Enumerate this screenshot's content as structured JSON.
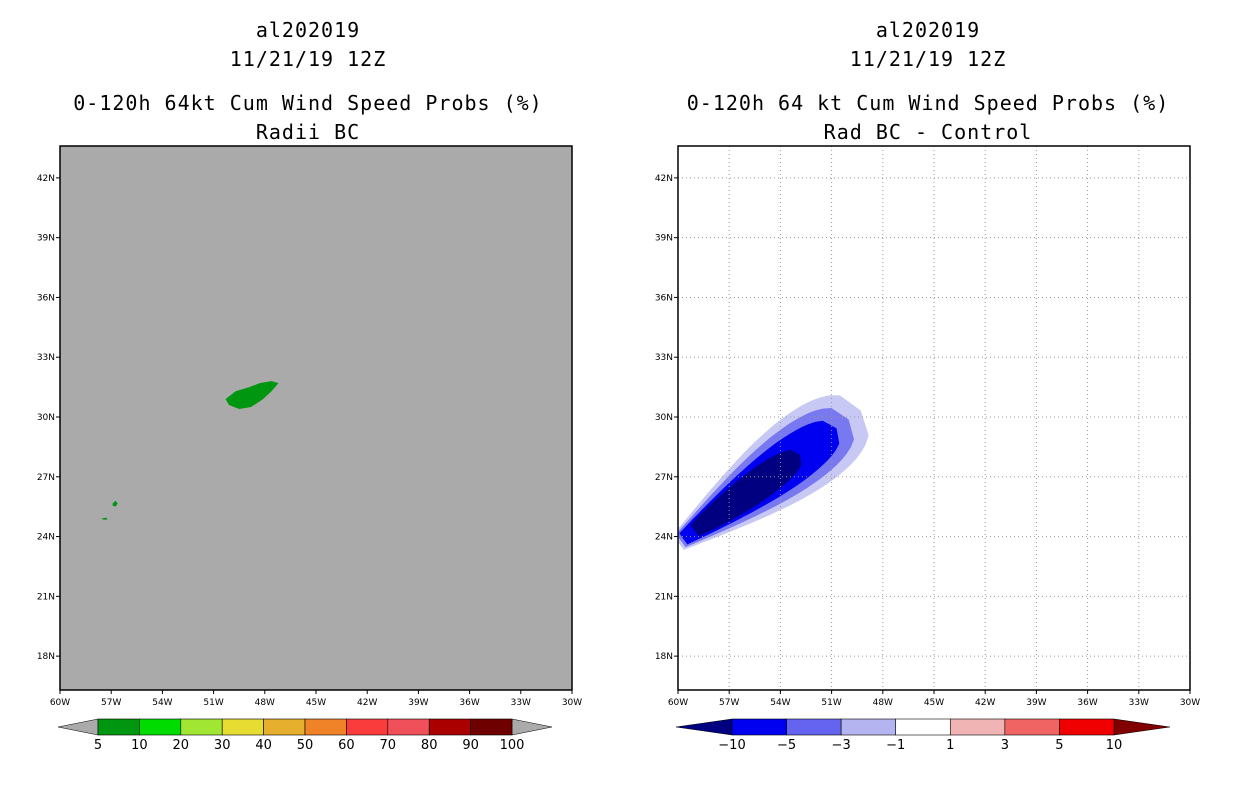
{
  "left_panel": {
    "storm_id": "al202019",
    "datetime": "11/21/19 12Z",
    "title": "0-120h 64kt Cum Wind Speed Probs (%)",
    "subtitle": "Radii BC"
  },
  "right_panel": {
    "storm_id": "al202019",
    "datetime": "11/21/19 12Z",
    "title": "0-120h 64 kt Cum Wind Speed Probs (%)",
    "subtitle": "Rad BC - Control"
  },
  "chart_data": [
    {
      "type": "heatmap",
      "title": "0-120h 64kt Cum Wind Speed Probs (%)",
      "subtitle": "Radii BC",
      "x_ticks": [
        "60W",
        "57W",
        "54W",
        "51W",
        "48W",
        "45W",
        "42W",
        "39W",
        "36W",
        "33W",
        "30W"
      ],
      "y_ticks": [
        "18N",
        "21N",
        "24N",
        "27N",
        "30N",
        "33N",
        "36N",
        "39N",
        "42N"
      ],
      "xlim_deg_west": [
        60,
        30
      ],
      "ylim_deg_north": [
        16.3,
        43.6
      ],
      "grid": false,
      "background_color": "#aaaaaa",
      "colorbar_labels": [
        "5",
        "10",
        "20",
        "30",
        "40",
        "50",
        "60",
        "70",
        "80",
        "90",
        "100"
      ],
      "colorbar_colors": [
        "#00960f",
        "#00dc00",
        "#a0e632",
        "#e6dc32",
        "#e6af2d",
        "#f08228",
        "#fa3c3c",
        "#f0505a",
        "#aa0000",
        "#6e0000",
        "#a000c8"
      ],
      "regions": [
        {
          "name": "main-area",
          "category": "5-10",
          "center_lon": -48.5,
          "center_lat": 31.0
        },
        {
          "name": "small-cell-1",
          "category": "5-10",
          "center_lon": -56.8,
          "center_lat": 25.6
        },
        {
          "name": "small-cell-2",
          "category": "5-10",
          "center_lon": -57.4,
          "center_lat": 24.9
        }
      ]
    },
    {
      "type": "heatmap",
      "title": "0-120h 64 kt Cum Wind Speed Probs (%)",
      "subtitle": "Rad BC - Control",
      "x_ticks": [
        "60W",
        "57W",
        "54W",
        "51W",
        "48W",
        "45W",
        "42W",
        "39W",
        "36W",
        "33W",
        "30W"
      ],
      "y_ticks": [
        "18N",
        "21N",
        "24N",
        "27N",
        "30N",
        "33N",
        "36N",
        "39N",
        "42N"
      ],
      "xlim_deg_west": [
        60,
        30
      ],
      "ylim_deg_north": [
        16.3,
        43.6
      ],
      "grid": true,
      "colorbar_labels": [
        "-10",
        "-5",
        "-3",
        "-1",
        "1",
        "3",
        "5",
        "10"
      ],
      "colorbar_colors": [
        "#000080",
        "#0000f0",
        "#6464f0",
        "#b4b4f0",
        "#ffffff",
        "#f0b4b4",
        "#f06464",
        "#f00000",
        "#800000"
      ],
      "contours": [
        {
          "level": "-1 to -3",
          "color": "#c8c8f5"
        },
        {
          "level": "-3 to -5",
          "color": "#7878f0"
        },
        {
          "level": "-5 to -10",
          "color": "#0000f0"
        },
        {
          "level": "below -10",
          "color": "#000080"
        }
      ],
      "anomaly_axis": {
        "start_lon": -59.5,
        "start_lat": 24.0,
        "end_lon": -49.0,
        "end_lat": 30.5
      }
    }
  ]
}
